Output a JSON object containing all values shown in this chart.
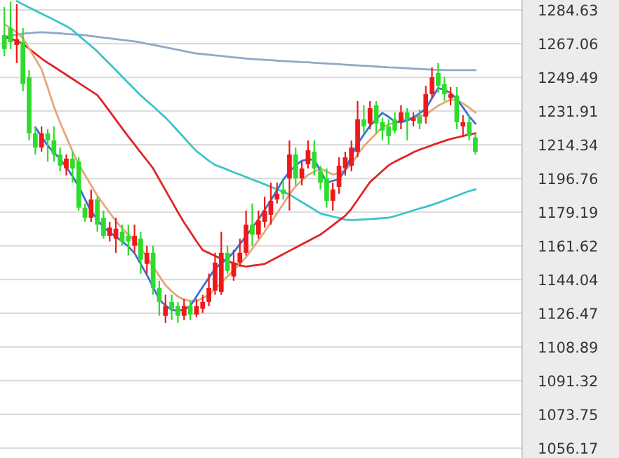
{
  "chart_data": {
    "type": "candlestick",
    "categories": [
      null,
      null,
      null,
      null,
      null,
      null,
      null,
      null,
      null,
      null,
      null,
      null,
      null,
      null,
      null,
      null,
      null,
      null,
      null,
      null,
      null,
      null,
      null,
      null,
      null,
      null,
      null,
      null,
      null,
      null,
      null,
      null,
      null,
      null,
      null,
      null,
      null,
      null,
      null,
      null,
      null,
      null,
      null,
      null,
      null,
      null,
      null,
      null,
      null,
      null,
      null,
      null,
      null,
      null,
      null,
      null,
      null,
      null,
      null,
      null,
      null,
      null,
      null,
      null,
      null,
      null,
      null,
      null,
      null,
      null,
      null,
      null,
      null,
      null,
      null,
      null,
      null
    ],
    "ylim": [
      1051.0,
      1289.8
    ],
    "yticks": [
      1056.17,
      1073.75,
      1091.32,
      1108.89,
      1126.47,
      1144.04,
      1161.62,
      1179.19,
      1196.76,
      1214.34,
      1231.91,
      1249.49,
      1267.06,
      1284.63
    ],
    "tick_labels": "y",
    "grid": "y",
    "colors": [
      "#2edc2e",
      "#2edc2e",
      "#f01818",
      "#2edc2e",
      "#2edc2e",
      "#2edc2e",
      "#f01818",
      "#2edc2e",
      "#2edc2e",
      "#2edc2e",
      "#f01818",
      "#2edc2e",
      "#2edc2e",
      "#2edc2e",
      "#f01818",
      "#2edc2e",
      "#2edc2e",
      "#f01818",
      "#f01818",
      "#2edc2e",
      "#2edc2e",
      "#f01818",
      "#2edc2e",
      "#f01818",
      "#2edc2e",
      "#2edc2e",
      "#f01818",
      "#2edc2e",
      "#2edc2e",
      "#f01818",
      "#2edc2e",
      "#f01818",
      "#f01818",
      "#f01818",
      "#f01818",
      "#f01818",
      "#2edc2e",
      "#f01818",
      "#f01818",
      "#f01818",
      "#2edc2e",
      "#f01818",
      "#f01818",
      "#f01818",
      "#f01818",
      "#2edc2e",
      "#f01818",
      "#2edc2e",
      "#f01818",
      "#f01818",
      "#2edc2e",
      "#2edc2e",
      "#2edc2e",
      "#f01818",
      "#f01818",
      "#f01818",
      "#f01818",
      "#f01818",
      "#2edc2e",
      "#f01818",
      "#2edc2e",
      "#2edc2e",
      "#2edc2e",
      "#2edc2e",
      "#f01818",
      "#2edc2e",
      "#f01818",
      "#2edc2e",
      "#f01818",
      "#f01818",
      "#2edc2e",
      "#2edc2e",
      "#f01818",
      "#2edc2e",
      "#f01818",
      "#2edc2e",
      "#2edc2e"
    ],
    "ohlc": [
      [
        1271.5,
        1286.1,
        1260.5,
        1264.2
      ],
      [
        1275.2,
        1289.0,
        1264.2,
        1267.8
      ],
      [
        1266.4,
        1287.6,
        1256.9,
        1269.3
      ],
      [
        1267.8,
        1275.2,
        1242.2,
        1245.9
      ],
      [
        1249.5,
        1253.2,
        1216.6,
        1220.3
      ],
      [
        1220.3,
        1223.9,
        1209.3,
        1212.9
      ],
      [
        1212.9,
        1223.9,
        1210.7,
        1220.3
      ],
      [
        1220.3,
        1222.4,
        1205.6,
        1216.6
      ],
      [
        1216.6,
        1223.9,
        1205.6,
        1209.3
      ],
      [
        1209.3,
        1212.9,
        1200.5,
        1203.4
      ],
      [
        1202.0,
        1209.3,
        1198.3,
        1207.1
      ],
      [
        1207.1,
        1210.7,
        1194.6,
        1202.0
      ],
      [
        1205.6,
        1207.8,
        1180.0,
        1181.5
      ],
      [
        1181.5,
        1183.7,
        1174.1,
        1176.3
      ],
      [
        1176.3,
        1191.0,
        1174.1,
        1185.8
      ],
      [
        1185.8,
        1187.3,
        1169.0,
        1172.7
      ],
      [
        1176.3,
        1180.0,
        1165.4,
        1166.8
      ],
      [
        1166.8,
        1174.1,
        1163.9,
        1171.2
      ],
      [
        1165.4,
        1176.3,
        1158.0,
        1170.5
      ],
      [
        1169.0,
        1172.7,
        1161.7,
        1163.9
      ],
      [
        1166.8,
        1172.7,
        1156.6,
        1163.9
      ],
      [
        1161.7,
        1172.7,
        1158.0,
        1166.8
      ],
      [
        1165.4,
        1169.0,
        1147.1,
        1154.4
      ],
      [
        1152.2,
        1161.7,
        1147.1,
        1158.0
      ],
      [
        1158.0,
        1161.7,
        1136.1,
        1139.7
      ],
      [
        1139.7,
        1143.4,
        1125.1,
        1132.4
      ],
      [
        1125.1,
        1136.1,
        1121.4,
        1130.2
      ],
      [
        1132.4,
        1136.1,
        1122.9,
        1128.8
      ],
      [
        1130.2,
        1132.4,
        1121.4,
        1125.1
      ],
      [
        1125.1,
        1133.9,
        1122.9,
        1130.2
      ],
      [
        1130.2,
        1133.1,
        1122.9,
        1125.8
      ],
      [
        1125.8,
        1133.9,
        1124.4,
        1130.2
      ],
      [
        1128.8,
        1136.1,
        1126.6,
        1132.4
      ],
      [
        1132.4,
        1147.1,
        1130.2,
        1139.7
      ],
      [
        1138.3,
        1158.0,
        1136.1,
        1152.9
      ],
      [
        1137.5,
        1169.0,
        1136.1,
        1158.0
      ],
      [
        1158.0,
        1161.7,
        1147.1,
        1148.5
      ],
      [
        1145.6,
        1159.5,
        1143.4,
        1152.9
      ],
      [
        1152.9,
        1165.4,
        1150.7,
        1158.0
      ],
      [
        1158.0,
        1180.0,
        1156.6,
        1172.7
      ],
      [
        1172.7,
        1183.7,
        1161.7,
        1167.5
      ],
      [
        1167.5,
        1180.0,
        1165.4,
        1174.9
      ],
      [
        1174.1,
        1187.3,
        1171.2,
        1180.0
      ],
      [
        1177.8,
        1194.6,
        1172.7,
        1185.1
      ],
      [
        1185.8,
        1194.6,
        1183.7,
        1188.8
      ],
      [
        1191.0,
        1196.1,
        1185.8,
        1188.8
      ],
      [
        1196.8,
        1216.6,
        1180.0,
        1209.3
      ],
      [
        1209.3,
        1212.9,
        1193.2,
        1196.8
      ],
      [
        1196.8,
        1205.6,
        1193.2,
        1202.0
      ],
      [
        1204.2,
        1216.6,
        1202.0,
        1211.5
      ],
      [
        1210.7,
        1216.6,
        1198.3,
        1202.0
      ],
      [
        1200.5,
        1203.4,
        1191.0,
        1194.6
      ],
      [
        1196.8,
        1202.0,
        1181.5,
        1185.1
      ],
      [
        1185.1,
        1194.6,
        1180.0,
        1191.0
      ],
      [
        1192.4,
        1207.8,
        1188.8,
        1203.4
      ],
      [
        1202.0,
        1210.7,
        1198.3,
        1207.8
      ],
      [
        1203.4,
        1216.6,
        1200.5,
        1212.9
      ],
      [
        1210.7,
        1237.1,
        1207.8,
        1227.6
      ],
      [
        1227.6,
        1234.9,
        1220.3,
        1223.9
      ],
      [
        1225.4,
        1237.1,
        1222.4,
        1233.4
      ],
      [
        1234.9,
        1237.1,
        1220.3,
        1225.4
      ],
      [
        1226.1,
        1228.3,
        1216.6,
        1221.7
      ],
      [
        1223.9,
        1227.6,
        1214.4,
        1218.8
      ],
      [
        1227.6,
        1231.2,
        1220.3,
        1221.7
      ],
      [
        1226.1,
        1234.9,
        1222.4,
        1231.2
      ],
      [
        1231.2,
        1233.4,
        1216.6,
        1227.6
      ],
      [
        1226.8,
        1231.2,
        1223.9,
        1228.3
      ],
      [
        1229.0,
        1232.7,
        1222.4,
        1225.4
      ],
      [
        1229.0,
        1245.1,
        1225.4,
        1240.7
      ],
      [
        1240.7,
        1254.7,
        1238.6,
        1249.5
      ],
      [
        1251.7,
        1256.9,
        1241.5,
        1245.1
      ],
      [
        1245.9,
        1249.5,
        1237.1,
        1240.7
      ],
      [
        1238.6,
        1244.4,
        1234.9,
        1240.7
      ],
      [
        1240.0,
        1244.4,
        1222.4,
        1226.1
      ],
      [
        1223.9,
        1229.8,
        1218.8,
        1226.1
      ],
      [
        1226.1,
        1229.8,
        1216.6,
        1218.8
      ],
      [
        1218.1,
        1220.3,
        1209.3,
        1210.7
      ]
    ],
    "series": [
      {
        "type": "line",
        "color": "#8fa9c6",
        "values": [
          1270.5,
          1271.1,
          1271.7,
          1272.3,
          1272.5,
          1272.8,
          1273.0,
          1272.8,
          1272.6,
          1272.4,
          1272.1,
          1271.9,
          1271.7,
          1271.4,
          1271.0,
          1270.6,
          1270.2,
          1269.8,
          1269.4,
          1269.0,
          1268.6,
          1268.2,
          1267.7,
          1267.0,
          1266.4,
          1265.8,
          1265.1,
          1264.5,
          1263.8,
          1263.2,
          1262.5,
          1261.9,
          1261.6,
          1261.3,
          1260.9,
          1260.6,
          1260.3,
          1259.9,
          1259.6,
          1259.3,
          1259.0,
          1258.8,
          1258.6,
          1258.4,
          1258.2,
          1258.0,
          1257.8,
          1257.6,
          1257.4,
          1257.3,
          1257.1,
          1256.9,
          1256.7,
          1256.5,
          1256.3,
          1256.1,
          1255.9,
          1255.7,
          1255.5,
          1255.3,
          1255.1,
          1254.9,
          1254.7,
          1254.6,
          1254.4,
          1254.2,
          1254.0,
          1253.9,
          1253.7,
          1253.5,
          1253.4,
          1253.2,
          1253.2,
          1253.2,
          1253.2,
          1253.2,
          1253.2
        ]
      },
      {
        "type": "line",
        "color": "#3cc3c8",
        "values": [
          null,
          null,
          1289.2,
          1287.5,
          1285.9,
          1284.3,
          1282.7,
          1281.1,
          1279.5,
          1277.8,
          1276.2,
          1274.1,
          1271.3,
          1268.5,
          1265.8,
          1263.0,
          1259.7,
          1256.5,
          1253.2,
          1249.9,
          1246.6,
          1243.4,
          1240.1,
          1237.2,
          1234.4,
          1231.4,
          1228.5,
          1225.1,
          1221.5,
          1218.0,
          1214.4,
          1211.0,
          1208.5,
          1206.0,
          1203.8,
          1202.6,
          1201.3,
          1200.0,
          1198.8,
          1197.5,
          1196.2,
          1195.0,
          1193.7,
          1192.4,
          1191.1,
          1189.8,
          1188.4,
          1186.4,
          1184.4,
          1182.5,
          1180.5,
          1178.5,
          1177.7,
          1176.9,
          1176.1,
          1175.3,
          1175.0,
          1175.2,
          1175.4,
          1175.6,
          1175.8,
          1176.0,
          1176.3,
          1177.1,
          1178.1,
          1179.1,
          1180.1,
          1181.1,
          1182.0,
          1183.0,
          1184.1,
          1185.3,
          1186.5,
          1187.7,
          1189.0,
          1190.2,
          1191.0
        ]
      },
      {
        "type": "line",
        "color": "#e02424",
        "values": [
          1270.7,
          1269.6,
          1268.6,
          1267.0,
          1264.4,
          1261.8,
          1259.3,
          1257.1,
          1255.0,
          1252.9,
          1250.8,
          1248.7,
          1246.5,
          1244.4,
          1242.3,
          1240.2,
          1236.1,
          1231.7,
          1227.3,
          1222.9,
          1218.6,
          1214.5,
          1210.3,
          1206.2,
          1202.0,
          1196.3,
          1190.6,
          1184.9,
          1179.2,
          1173.8,
          1168.9,
          1164.0,
          1159.4,
          1157.9,
          1156.4,
          1154.8,
          1153.6,
          1152.6,
          1151.5,
          1150.8,
          1151.3,
          1151.7,
          1152.2,
          1153.9,
          1155.6,
          1157.3,
          1159.0,
          1160.7,
          1162.4,
          1164.1,
          1165.8,
          1167.5,
          1169.9,
          1172.4,
          1174.8,
          1177.3,
          1180.9,
          1185.6,
          1190.3,
          1194.9,
          1197.8,
          1200.7,
          1203.6,
          1205.5,
          1207.1,
          1208.7,
          1210.4,
          1211.8,
          1212.9,
          1214.1,
          1215.2,
          1216.3,
          1217.3,
          1218.1,
          1218.9,
          1219.7,
          1220.3
        ]
      },
      {
        "type": "line",
        "color": "#e6a67a",
        "values": [
          1277.3,
          1275.1,
          1273.0,
          1269.9,
          1264.5,
          1259.1,
          1253.7,
          1244.2,
          1234.2,
          1225.9,
          1218.4,
          1210.9,
          1204.0,
          1198.6,
          1193.2,
          1187.8,
          1183.3,
          1178.9,
          1174.5,
          1170.8,
          1167.5,
          1164.3,
          1160.7,
          1155.7,
          1150.7,
          1145.9,
          1141.1,
          1137.9,
          1135.2,
          1133.6,
          1132.9,
          1132.7,
          1134.4,
          1136.1,
          1139.3,
          1142.4,
          1145.7,
          1148.9,
          1152.2,
          1155.7,
          1160.1,
          1164.6,
          1169.0,
          1173.8,
          1178.6,
          1183.5,
          1188.5,
          1192.6,
          1195.8,
          1198.6,
          1200.3,
          1202.0,
          1200.4,
          1198.8,
          1199.5,
          1201.2,
          1204.4,
          1209.1,
          1213.6,
          1216.9,
          1220.2,
          1223.6,
          1224.9,
          1226.0,
          1227.1,
          1227.9,
          1228.6,
          1229.2,
          1230.0,
          1232.4,
          1234.7,
          1236.3,
          1237.9,
          1237.6,
          1235.9,
          1233.6,
          1231.2
        ]
      },
      {
        "type": "line",
        "color": "#3a6fd8",
        "values": [
          null,
          null,
          null,
          null,
          null,
          1223.4,
          1218.6,
          1213.9,
          1210.2,
          1206.9,
          1202.7,
          1197.9,
          1192.6,
          1186.0,
          1179.6,
          1175.5,
          1171.3,
          1168.6,
          1166.3,
          1163.9,
          1161.3,
          1157.8,
          1152.2,
          1146.5,
          1140.1,
          1133.7,
          1130.5,
          1128.2,
          1127.7,
          1128.3,
          1130.3,
          1135.2,
          1140.2,
          1145.0,
          1149.7,
          1152.6,
          1154.9,
          1158.3,
          1162.5,
          1166.7,
          1171.0,
          1175.4,
          1180.4,
          1185.3,
          1190.7,
          1196.1,
          1200.3,
          1203.6,
          1206.0,
          1206.7,
          1206.5,
          1200.8,
          1194.6,
          1195.5,
          1196.4,
          1201.2,
          1208.5,
          1214.8,
          1219.6,
          1224.2,
          1227.6,
          1230.9,
          1228.9,
          1226.4,
          1226.0,
          1227.0,
          1228.5,
          1230.7,
          1233.2,
          1238.6,
          1243.9,
          1243.0,
          1241.3,
          1238.1,
          1233.8,
          1229.1,
          1225.4
        ]
      }
    ]
  }
}
